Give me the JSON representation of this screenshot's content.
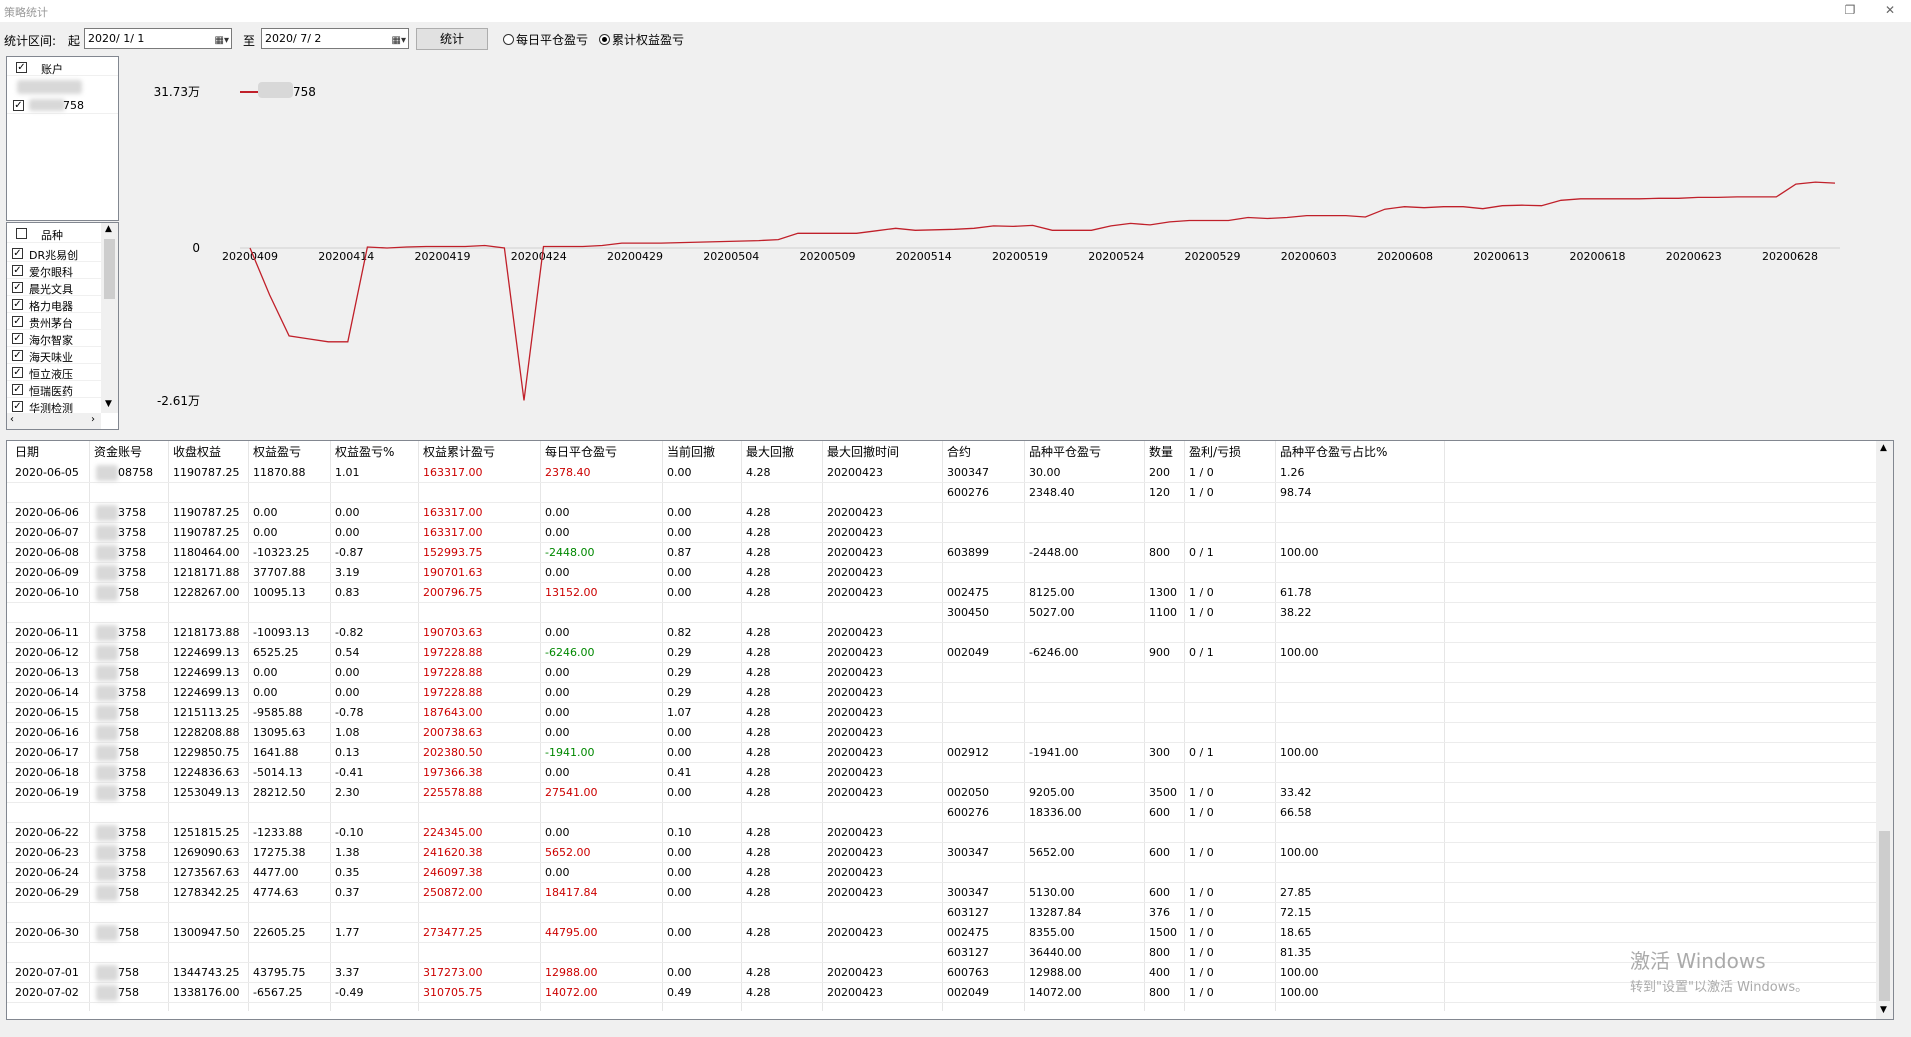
{
  "window": {
    "title": "策略统计"
  },
  "toolbar": {
    "range_label": "统计区间:",
    "from_label": "起",
    "from_date": "2020/ 1/ 1",
    "to_label": "至",
    "to_date": "2020/ 7/ 2",
    "stat_button": "统计",
    "radio_daily": "每日平仓盈亏",
    "radio_cum": "累计权益盈亏",
    "selected_radio": "cum"
  },
  "accounts": {
    "header": "账户",
    "items": [
      {
        "label": "758",
        "checked": true
      }
    ]
  },
  "varieties": {
    "header": "品种",
    "items": [
      "DR兆易创",
      "爱尔眼科",
      "晨光文具",
      "格力电器",
      "贵州茅台",
      "海尔智家",
      "海天味业",
      "恒立液压",
      "恒瑞医药",
      "华测检测"
    ]
  },
  "chart_data": {
    "type": "line",
    "title": "",
    "legend": [
      "758"
    ],
    "ytick_labels": [
      "31.73万",
      "0",
      "-2.61万"
    ],
    "ylim": [
      -26100,
      317300
    ],
    "color": "#c0202a",
    "xtick_labels": [
      "20200409",
      "20200414",
      "20200419",
      "20200424",
      "20200429",
      "20200504",
      "20200509",
      "20200514",
      "20200519",
      "20200524",
      "20200529",
      "20200603",
      "20200608",
      "20200613",
      "20200618",
      "20200623",
      "20200628"
    ],
    "values": [
      0,
      -8000,
      -15000,
      -15500,
      -16000,
      -16000,
      2000,
      0,
      2000,
      3000,
      3000,
      3000,
      5000,
      0,
      -26000,
      3000,
      3000,
      3000,
      5000,
      10000,
      10000,
      10000,
      11000,
      12000,
      13000,
      14000,
      15000,
      17000,
      30000,
      30000,
      30000,
      30000,
      35000,
      40000,
      36000,
      37000,
      38000,
      40000,
      45000,
      44000,
      46000,
      36000,
      36000,
      36000,
      45000,
      50000,
      47000,
      53000,
      56000,
      56000,
      56000,
      62000,
      60000,
      62000,
      66000,
      66000,
      66000,
      63000,
      79000,
      84000,
      82000,
      84000,
      84000,
      80000,
      86000,
      87000,
      86000,
      97000,
      100000,
      100000,
      100000,
      100000,
      101000,
      101000,
      103000,
      103000,
      104000,
      104000,
      104000,
      130000,
      134000,
      132000
    ]
  },
  "table": {
    "columns": [
      "日期",
      "资金账号",
      "收盘权益",
      "权益盈亏",
      "权益盈亏%",
      "权益累计盈亏",
      "每日平仓盈亏",
      "当前回撤",
      "最大回撤",
      "最大回撤时间",
      "合约",
      "品种平仓盈亏",
      "数量",
      "盈利/亏损",
      "品种平仓盈亏占比%"
    ],
    "rows": [
      [
        "2020-06-05",
        "08758",
        "1190787.25",
        "11870.88",
        "1.01",
        "163317.00",
        "2378.40",
        "0.00",
        "4.28",
        "20200423",
        "300347",
        "30.00",
        "200",
        "1 / 0",
        "1.26"
      ],
      [
        "",
        "",
        "",
        "",
        "",
        "",
        "",
        "",
        "",
        "",
        "600276",
        "2348.40",
        "120",
        "1 / 0",
        "98.74"
      ],
      [
        "2020-06-06",
        "3758",
        "1190787.25",
        "0.00",
        "0.00",
        "163317.00",
        "0.00",
        "0.00",
        "4.28",
        "20200423",
        "",
        "",
        "",
        "",
        ""
      ],
      [
        "2020-06-07",
        "3758",
        "1190787.25",
        "0.00",
        "0.00",
        "163317.00",
        "0.00",
        "0.00",
        "4.28",
        "20200423",
        "",
        "",
        "",
        "",
        ""
      ],
      [
        "2020-06-08",
        "3758",
        "1180464.00",
        "-10323.25",
        "-0.87",
        "152993.75",
        "-2448.00",
        "0.87",
        "4.28",
        "20200423",
        "603899",
        "-2448.00",
        "800",
        "0 / 1",
        "100.00"
      ],
      [
        "2020-06-09",
        "3758",
        "1218171.88",
        "37707.88",
        "3.19",
        "190701.63",
        "0.00",
        "0.00",
        "4.28",
        "20200423",
        "",
        "",
        "",
        "",
        ""
      ],
      [
        "2020-06-10",
        "758",
        "1228267.00",
        "10095.13",
        "0.83",
        "200796.75",
        "13152.00",
        "0.00",
        "4.28",
        "20200423",
        "002475",
        "8125.00",
        "1300",
        "1 / 0",
        "61.78"
      ],
      [
        "",
        "",
        "",
        "",
        "",
        "",
        "",
        "",
        "",
        "",
        "300450",
        "5027.00",
        "1100",
        "1 / 0",
        "38.22"
      ],
      [
        "2020-06-11",
        "3758",
        "1218173.88",
        "-10093.13",
        "-0.82",
        "190703.63",
        "0.00",
        "0.82",
        "4.28",
        "20200423",
        "",
        "",
        "",
        "",
        ""
      ],
      [
        "2020-06-12",
        "758",
        "1224699.13",
        "6525.25",
        "0.54",
        "197228.88",
        "-6246.00",
        "0.29",
        "4.28",
        "20200423",
        "002049",
        "-6246.00",
        "900",
        "0 / 1",
        "100.00"
      ],
      [
        "2020-06-13",
        "758",
        "1224699.13",
        "0.00",
        "0.00",
        "197228.88",
        "0.00",
        "0.29",
        "4.28",
        "20200423",
        "",
        "",
        "",
        "",
        ""
      ],
      [
        "2020-06-14",
        "3758",
        "1224699.13",
        "0.00",
        "0.00",
        "197228.88",
        "0.00",
        "0.29",
        "4.28",
        "20200423",
        "",
        "",
        "",
        "",
        ""
      ],
      [
        "2020-06-15",
        "758",
        "1215113.25",
        "-9585.88",
        "-0.78",
        "187643.00",
        "0.00",
        "1.07",
        "4.28",
        "20200423",
        "",
        "",
        "",
        "",
        ""
      ],
      [
        "2020-06-16",
        "758",
        "1228208.88",
        "13095.63",
        "1.08",
        "200738.63",
        "0.00",
        "0.00",
        "4.28",
        "20200423",
        "",
        "",
        "",
        "",
        ""
      ],
      [
        "2020-06-17",
        "758",
        "1229850.75",
        "1641.88",
        "0.13",
        "202380.50",
        "-1941.00",
        "0.00",
        "4.28",
        "20200423",
        "002912",
        "-1941.00",
        "300",
        "0 / 1",
        "100.00"
      ],
      [
        "2020-06-18",
        "3758",
        "1224836.63",
        "-5014.13",
        "-0.41",
        "197366.38",
        "0.00",
        "0.41",
        "4.28",
        "20200423",
        "",
        "",
        "",
        "",
        ""
      ],
      [
        "2020-06-19",
        "3758",
        "1253049.13",
        "28212.50",
        "2.30",
        "225578.88",
        "27541.00",
        "0.00",
        "4.28",
        "20200423",
        "002050",
        "9205.00",
        "3500",
        "1 / 0",
        "33.42"
      ],
      [
        "",
        "",
        "",
        "",
        "",
        "",
        "",
        "",
        "",
        "",
        "600276",
        "18336.00",
        "600",
        "1 / 0",
        "66.58"
      ],
      [
        "2020-06-22",
        "3758",
        "1251815.25",
        "-1233.88",
        "-0.10",
        "224345.00",
        "0.00",
        "0.10",
        "4.28",
        "20200423",
        "",
        "",
        "",
        "",
        ""
      ],
      [
        "2020-06-23",
        "3758",
        "1269090.63",
        "17275.38",
        "1.38",
        "241620.38",
        "5652.00",
        "0.00",
        "4.28",
        "20200423",
        "300347",
        "5652.00",
        "600",
        "1 / 0",
        "100.00"
      ],
      [
        "2020-06-24",
        "3758",
        "1273567.63",
        "4477.00",
        "0.35",
        "246097.38",
        "0.00",
        "0.00",
        "4.28",
        "20200423",
        "",
        "",
        "",
        "",
        ""
      ],
      [
        "2020-06-29",
        "758",
        "1278342.25",
        "4774.63",
        "0.37",
        "250872.00",
        "18417.84",
        "0.00",
        "4.28",
        "20200423",
        "300347",
        "5130.00",
        "600",
        "1 / 0",
        "27.85"
      ],
      [
        "",
        "",
        "",
        "",
        "",
        "",
        "",
        "",
        "",
        "",
        "603127",
        "13287.84",
        "376",
        "1 / 0",
        "72.15"
      ],
      [
        "2020-06-30",
        "758",
        "1300947.50",
        "22605.25",
        "1.77",
        "273477.25",
        "44795.00",
        "0.00",
        "4.28",
        "20200423",
        "002475",
        "8355.00",
        "1500",
        "1 / 0",
        "18.65"
      ],
      [
        "",
        "",
        "",
        "",
        "",
        "",
        "",
        "",
        "",
        "",
        "603127",
        "36440.00",
        "800",
        "1 / 0",
        "81.35"
      ],
      [
        "2020-07-01",
        "758",
        "1344743.25",
        "43795.75",
        "3.37",
        "317273.00",
        "12988.00",
        "0.00",
        "4.28",
        "20200423",
        "600763",
        "12988.00",
        "400",
        "1 / 0",
        "100.00"
      ],
      [
        "2020-07-02",
        "758",
        "1338176.00",
        "-6567.25",
        "-0.49",
        "310705.75",
        "14072.00",
        "0.49",
        "4.28",
        "20200423",
        "002049",
        "14072.00",
        "800",
        "1 / 0",
        "100.00"
      ]
    ]
  },
  "colors": {
    "negative": "#008800",
    "positive": "#cc0000",
    "line": "#c0202a"
  },
  "watermark": {
    "line1": "激活 Windows",
    "line2": "转到\"设置\"以激活 Windows。"
  }
}
